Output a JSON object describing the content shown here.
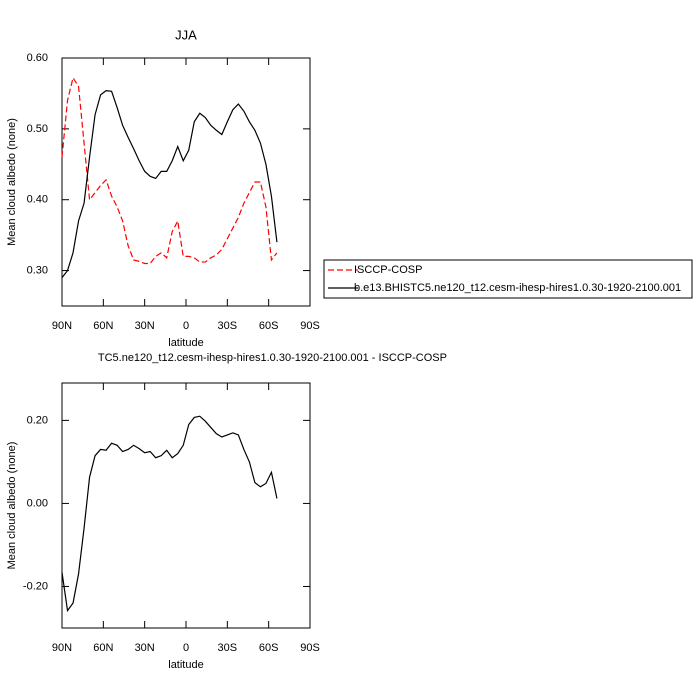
{
  "chart_data": [
    {
      "type": "line",
      "title": "JJA",
      "xlabel": "latitude",
      "ylabel": "Mean cloud albedo (none)",
      "x": [
        90,
        86,
        82,
        78,
        74,
        70,
        66,
        62,
        58,
        54,
        50,
        46,
        42,
        38,
        34,
        30,
        26,
        22,
        18,
        14,
        10,
        6,
        2,
        -2,
        -6,
        -10,
        -14,
        -18,
        -22,
        -26,
        -30,
        -34,
        -38,
        -42,
        -46,
        -50,
        -54,
        -58,
        -62,
        -66
      ],
      "xlim": [
        90,
        -90
      ],
      "xticks": [
        {
          "value": 90,
          "label": "90N"
        },
        {
          "value": 60,
          "label": "60N"
        },
        {
          "value": 30,
          "label": "30N"
        },
        0,
        {
          "value": -30,
          "label": "30S"
        },
        {
          "value": -60,
          "label": "60S"
        },
        {
          "value": -90,
          "label": "90S"
        }
      ],
      "ylim": [
        0.25,
        0.6
      ],
      "yticks": [
        {
          "value": 0.3,
          "label": "0.30"
        },
        {
          "value": 0.4,
          "label": "0.40"
        },
        {
          "value": 0.5,
          "label": "0.50"
        },
        {
          "value": 0.6,
          "label": "0.60"
        }
      ],
      "legend": "right",
      "series": [
        {
          "name": "ISCCP-COSP",
          "color": "#ff0000",
          "linestyle": "dashed",
          "values": [
            0.46,
            0.54,
            0.572,
            0.56,
            0.48,
            0.4,
            0.41,
            0.42,
            0.428,
            0.405,
            0.39,
            0.37,
            0.335,
            0.315,
            0.313,
            0.31,
            0.31,
            0.32,
            0.325,
            0.318,
            0.355,
            0.37,
            0.32,
            0.32,
            0.318,
            0.312,
            0.312,
            0.318,
            0.322,
            0.33,
            0.345,
            0.36,
            0.375,
            0.395,
            0.41,
            0.425,
            0.425,
            0.39,
            0.315,
            0.325
          ]
        },
        {
          "name": "b.e13.BHISTC5.ne120_t12.cesm-ihesp-hires1.0.30-1920-2100.001",
          "color": "#000000",
          "linestyle": "solid",
          "values": [
            0.29,
            0.3,
            0.325,
            0.37,
            0.395,
            0.46,
            0.52,
            0.548,
            0.554,
            0.553,
            0.53,
            0.505,
            0.488,
            0.472,
            0.455,
            0.44,
            0.433,
            0.43,
            0.44,
            0.44,
            0.455,
            0.475,
            0.455,
            0.47,
            0.51,
            0.522,
            0.516,
            0.505,
            0.498,
            0.492,
            0.51,
            0.527,
            0.535,
            0.525,
            0.51,
            0.498,
            0.48,
            0.45,
            0.405,
            0.34
          ]
        }
      ]
    },
    {
      "type": "line",
      "title": "TC5.ne120_t12.cesm-ihesp-hires1.0.30-1920-2100.001 - ISCCP-COSP",
      "xlabel": "latitude",
      "ylabel": "Mean cloud albedo (none)",
      "x": [
        90,
        86,
        82,
        78,
        74,
        70,
        66,
        62,
        58,
        54,
        50,
        46,
        42,
        38,
        34,
        30,
        26,
        22,
        18,
        14,
        10,
        6,
        2,
        -2,
        -6,
        -10,
        -14,
        -18,
        -22,
        -26,
        -30,
        -34,
        -38,
        -42,
        -46,
        -50,
        -54,
        -58,
        -62,
        -66
      ],
      "xlim": [
        90,
        -90
      ],
      "xticks": [
        {
          "value": 90,
          "label": "90N"
        },
        {
          "value": 60,
          "label": "60N"
        },
        {
          "value": 30,
          "label": "30N"
        },
        0,
        {
          "value": -30,
          "label": "30S"
        },
        {
          "value": -60,
          "label": "60S"
        },
        {
          "value": -90,
          "label": "90S"
        }
      ],
      "ylim": [
        -0.3,
        0.29
      ],
      "yticks": [
        {
          "value": -0.2,
          "label": "-0.20"
        },
        {
          "value": 0,
          "label": "0.00"
        },
        {
          "value": 0.2,
          "label": "0.20"
        }
      ],
      "series": [
        {
          "color": "#000000",
          "linestyle": "solid",
          "values": [
            -0.166,
            -0.258,
            -0.24,
            -0.17,
            -0.06,
            0.063,
            0.115,
            0.13,
            0.128,
            0.145,
            0.14,
            0.125,
            0.13,
            0.14,
            0.132,
            0.122,
            0.125,
            0.11,
            0.115,
            0.128,
            0.11,
            0.12,
            0.14,
            0.19,
            0.207,
            0.21,
            0.198,
            0.183,
            0.168,
            0.16,
            0.165,
            0.17,
            0.165,
            0.13,
            0.1,
            0.05,
            0.04,
            0.048,
            0.075,
            0.012
          ]
        }
      ]
    }
  ]
}
